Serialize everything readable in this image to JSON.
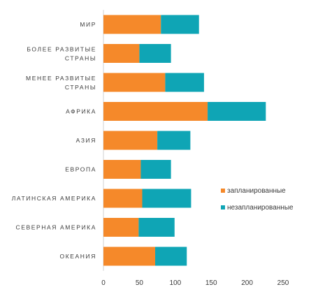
{
  "chart_data": {
    "type": "bar",
    "orientation": "horizontal",
    "stacked": true,
    "categories": [
      "МИР",
      "БОЛЕЕ РАЗВИТЫЕ СТРАНЫ",
      "МЕНЕЕ РАЗВИТЫЕ СТРАНЫ",
      "АФРИКА",
      "АЗИЯ",
      "ЕВРОПА",
      "ЛАТИНСКАЯ АМЕРИКА",
      "СЕВЕРНАЯ АМЕРИКА",
      "ОКЕАНИЯ"
    ],
    "series": [
      {
        "name": "запланированные",
        "color": "#F5892A",
        "values": [
          80,
          50,
          86,
          145,
          75,
          52,
          54,
          49,
          72
        ]
      },
      {
        "name": "незапланированные",
        "color": "#0FA5B5",
        "values": [
          53,
          44,
          54,
          81,
          46,
          42,
          68,
          50,
          44
        ]
      }
    ],
    "xlim": [
      0,
      250
    ],
    "xticks": [
      0,
      50,
      100,
      150,
      200,
      250
    ],
    "title": "",
    "xlabel": "",
    "ylabel": "",
    "grid": false,
    "legend_position": "right"
  }
}
